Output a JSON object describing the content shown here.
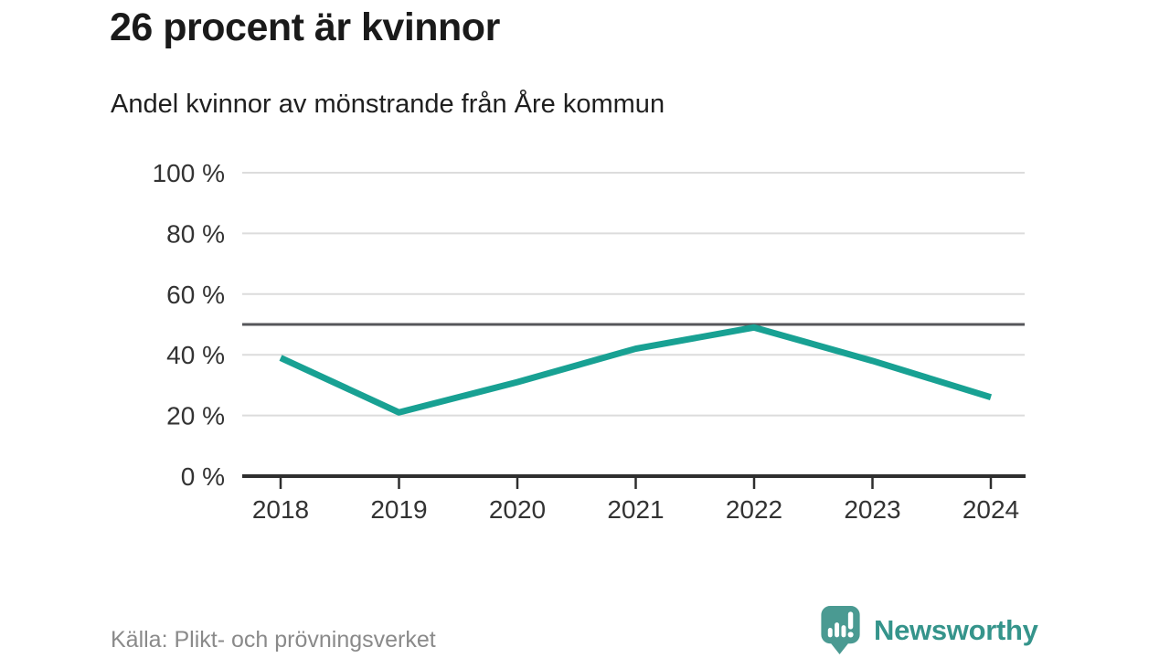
{
  "header": {
    "title": "26 procent är kvinnor",
    "subtitle": "Andel kvinnor av mönstrande från Åre kommun"
  },
  "chart_data": {
    "type": "line",
    "categories": [
      "2018",
      "2019",
      "2020",
      "2021",
      "2022",
      "2023",
      "2024"
    ],
    "series": [
      {
        "name": "Andel kvinnor",
        "values": [
          39,
          21,
          31,
          42,
          49,
          38,
          26
        ]
      }
    ],
    "reference_line": 50,
    "y_ticks": [
      0,
      20,
      40,
      60,
      80,
      100
    ],
    "y_tick_suffix": " %",
    "ylim": [
      0,
      100
    ],
    "title": "26 procent är kvinnor",
    "subtitle": "Andel kvinnor av mönstrande från Åre kommun",
    "grid": true,
    "legend": false
  },
  "footer": {
    "source": "Källa: Plikt- och prövningsverket",
    "brand": "Newsworthy"
  },
  "icons": {
    "brand": "newsworthy-bar-chart-speech-bubble-icon"
  },
  "colors": {
    "line": "#18a193",
    "reference": "#55565a",
    "grid": "#dcdcdc",
    "axis": "#2e2e2e",
    "tick_label": "#333333",
    "source_text": "#8a8a8a",
    "brand_text": "#35948b",
    "brand_icon": "#4a9a92"
  }
}
